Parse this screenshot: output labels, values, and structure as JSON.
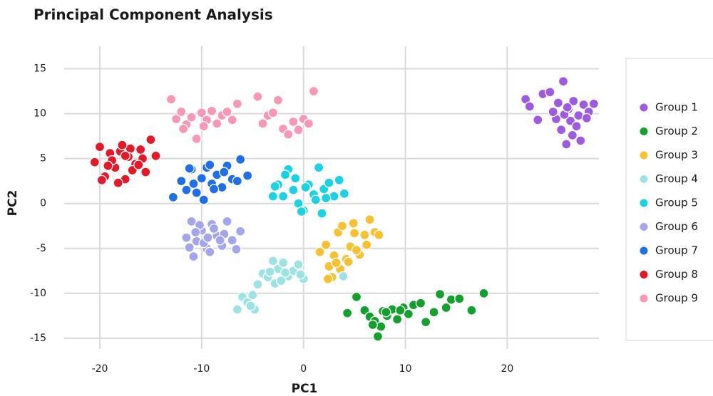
{
  "chart_data": {
    "type": "scatter",
    "title": "Principal Component Analysis",
    "x_label": "PC1",
    "y_label": "PC2",
    "xlim": [
      -23.5,
      29
    ],
    "ylim": [
      -16.2,
      17.5
    ],
    "xticks": [
      -20,
      -10,
      0,
      10,
      20
    ],
    "yticks": [
      -15,
      -10,
      -5,
      0,
      5,
      10,
      15
    ],
    "grid": true,
    "legend": "right",
    "series": [
      {
        "name": "Group 1",
        "color": "#9d5ce0",
        "x": [
          21.8,
          22.2,
          23.5,
          24.2,
          25,
          25.5,
          26,
          26.5,
          27,
          27.5,
          28,
          28.5,
          24.8,
          25.3,
          26.2,
          26.8,
          25.8,
          27.2,
          23,
          24.5,
          25.6,
          26.4,
          27.8,
          25.9
        ],
        "y": [
          11.6,
          10.8,
          12.2,
          12.4,
          11.2,
          13.6,
          10.5,
          11.4,
          9.8,
          11,
          10.2,
          11.1,
          9.4,
          8.2,
          9.2,
          8.6,
          6.6,
          7,
          9.3,
          10.2,
          9.9,
          7.6,
          9.5,
          10.7
        ]
      },
      {
        "name": "Group 2",
        "color": "#14a02e",
        "x": [
          4.3,
          5.2,
          6,
          6.5,
          7,
          7.3,
          7.8,
          8.2,
          8.7,
          9.2,
          9.8,
          10.3,
          10.8,
          11.5,
          12,
          12.8,
          13.4,
          14,
          14.5,
          15.3,
          16.5,
          17.7,
          7.6,
          6.8,
          9.5,
          8.1
        ],
        "y": [
          -12.2,
          -10.4,
          -11.9,
          -12.6,
          -13.1,
          -14.8,
          -12,
          -12.5,
          -11.8,
          -12.9,
          -11.6,
          -12.3,
          -11.3,
          -11.1,
          -13.2,
          -12.1,
          -10.1,
          -11.6,
          -10.7,
          -10.6,
          -11.9,
          -10,
          -13.7,
          -13.5,
          -11.9,
          -12.1
        ]
      },
      {
        "name": "Group 3",
        "color": "#f8c131",
        "x": [
          1.6,
          2.2,
          2.5,
          3,
          3.4,
          3.8,
          4.2,
          4.6,
          5,
          5.5,
          6,
          6.5,
          7,
          7.4,
          2.8,
          3.6,
          4.4,
          5.2,
          6.2,
          3.2,
          4.9,
          2.4
        ],
        "y": [
          -5.4,
          -4.6,
          -7,
          -5.8,
          -3.2,
          -2.5,
          -6.2,
          -4.8,
          -3.3,
          -5.7,
          -3.5,
          -1.8,
          -3.2,
          -3.5,
          -8.2,
          -7.3,
          -6.5,
          -5.2,
          -4.6,
          -6.6,
          -2.2,
          -8.4
        ]
      },
      {
        "name": "Group 4",
        "color": "#9ee3e3",
        "x": [
          -6.5,
          -6,
          -5.5,
          -5,
          -4.8,
          -4.5,
          -4,
          -3.5,
          -3,
          -2.5,
          -2,
          -1.5,
          -1,
          -0.5,
          0,
          -2.8,
          -3.3,
          -1.8,
          -2.2,
          3.9,
          -5.2,
          -0.3
        ],
        "y": [
          -11.8,
          -10.4,
          -11,
          -10.2,
          -11.8,
          -9,
          -7.8,
          -8.2,
          -6.4,
          -7.3,
          -6.6,
          -8.1,
          -7.5,
          -6.8,
          -8.4,
          -8.9,
          -7.6,
          -7.7,
          -8.6,
          -8.1,
          -11.4,
          -7.9
        ]
      },
      {
        "name": "Group 5",
        "color": "#1ad2e3",
        "x": [
          -3,
          -2.5,
          -2,
          -1.5,
          -1,
          -0.5,
          0,
          0.5,
          1,
          1.5,
          2,
          2.5,
          3,
          3.5,
          4,
          -1.8,
          -0.8,
          0.2,
          1.2,
          2.2,
          -0.2,
          1.8,
          -2.8
        ],
        "y": [
          0.8,
          2.1,
          0.8,
          3.8,
          1.5,
          0,
          -0.8,
          2.1,
          1,
          4,
          1.6,
          2.3,
          0.8,
          2.6,
          1.1,
          3.2,
          2.8,
          1.8,
          0.4,
          0.6,
          -0.9,
          -1.1,
          1.9
        ]
      },
      {
        "name": "Group 6",
        "color": "#a5a5ee",
        "x": [
          -11.5,
          -11,
          -10.5,
          -10,
          -9.5,
          -9,
          -8.5,
          -8,
          -7.5,
          -7,
          -6.2,
          -10.8,
          -9.8,
          -8.8,
          -7.8,
          -11.2,
          -10.2,
          -9.2,
          -8.2,
          -10.6,
          -9.4,
          -6.6
        ],
        "y": [
          -3.8,
          -2,
          -4.2,
          -3,
          -5,
          -2.3,
          -3.6,
          -4.7,
          -2,
          -4.1,
          -3.1,
          -5.9,
          -4.4,
          -2.8,
          -3.4,
          -4.9,
          -2.4,
          -5.4,
          -4.1,
          -3.2,
          -3.8,
          -5.1
        ]
      },
      {
        "name": "Group 7",
        "color": "#1e6fe8",
        "x": [
          -12.8,
          -12,
          -11.5,
          -11,
          -10.5,
          -10,
          -9.5,
          -9,
          -8.5,
          -8,
          -7.5,
          -7,
          -6.5,
          -5.5,
          -9.8,
          -10.8,
          -8.8,
          -7.8,
          -11.2,
          -9.2,
          -6.2
        ],
        "y": [
          0.7,
          2.5,
          1.5,
          3.8,
          1.2,
          2.8,
          4,
          2.2,
          3.2,
          1.8,
          4.2,
          2.7,
          2.5,
          3.1,
          0.4,
          2.2,
          1.6,
          3.5,
          3.9,
          4.3,
          4.9
        ]
      },
      {
        "name": "Group 8",
        "color": "#e3192a",
        "x": [
          -20.5,
          -20,
          -19.5,
          -19,
          -18.5,
          -18,
          -17.5,
          -17,
          -16.5,
          -16,
          -15.5,
          -15,
          -14.5,
          -19.8,
          -18.8,
          -17.8,
          -16.8,
          -15.8,
          -19.2,
          -18.2,
          -17.2,
          -16.2,
          -17.5
        ],
        "y": [
          4.6,
          6.3,
          3,
          5.6,
          4,
          5.8,
          2.7,
          6.1,
          4.4,
          6,
          3.5,
          7.1,
          5.3,
          2.6,
          4.8,
          6.5,
          3.7,
          5,
          4.2,
          2.3,
          5.2,
          4.3,
          5.3
        ]
      },
      {
        "name": "Group 9",
        "color": "#f898b4",
        "x": [
          -13,
          -12.5,
          -12,
          -11.5,
          -11,
          -10.5,
          -10,
          -9.5,
          -9,
          -8.5,
          -8,
          -7.5,
          -7,
          -6.5,
          -4.5,
          -4,
          -3.5,
          -3,
          -2.5,
          -2,
          -1.5,
          -1,
          -0.5,
          0,
          0.5,
          1,
          -11.8,
          -9.8
        ],
        "y": [
          11.6,
          9.4,
          10.2,
          8.8,
          9.6,
          7.2,
          10.1,
          9.3,
          10.3,
          8.9,
          9.8,
          10.2,
          9.3,
          11.1,
          11.9,
          8.9,
          9.8,
          10.1,
          11.5,
          8.3,
          7.7,
          9.1,
          8.2,
          9.4,
          8.9,
          12.5,
          8.3,
          8.6
        ]
      }
    ]
  }
}
